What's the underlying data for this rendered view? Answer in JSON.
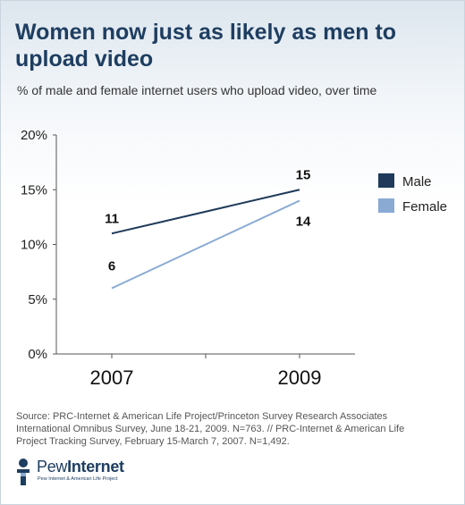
{
  "chart_data": {
    "type": "line",
    "title": "Women now just as likely as men to upload video",
    "subtitle": "% of male and female internet users who upload video, over time",
    "x": [
      "2007",
      "2009"
    ],
    "ylim": [
      0,
      20
    ],
    "yticks": [
      "0%",
      "5%",
      "10%",
      "15%",
      "20%"
    ],
    "series": [
      {
        "name": "Male",
        "values": [
          11,
          15
        ],
        "labels": [
          "11",
          "15"
        ],
        "color": "#1f3a5a"
      },
      {
        "name": "Female",
        "values": [
          6,
          14
        ],
        "labels": [
          "6",
          "14"
        ],
        "color": "#8aaad4"
      }
    ],
    "legend_position": "right",
    "grid": false
  },
  "source": "Source: PRC-Internet & American Life Project/Princeton Survey Research Associates International Omnibus Survey, June 18-21, 2009. N=763. // PRC-Internet & American Life Project Tracking Survey, February 15-March 7, 2007.  N=1,492.",
  "logo": {
    "name_part1": "Pew",
    "name_part2": "Internet",
    "tagline": "Pew Internet & American Life Project"
  }
}
